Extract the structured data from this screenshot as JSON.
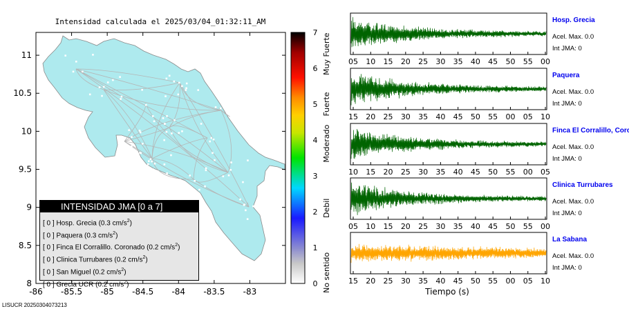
{
  "map": {
    "title": "Intensidad calculada el 2025/03/04_01:32:11_AM",
    "x_ticks": [
      "-86",
      "-85.5",
      "-85",
      "-84.5",
      "-84",
      "-83.5",
      "-83"
    ],
    "y_ticks": [
      "11",
      "10.5",
      "10",
      "9.5",
      "9",
      "8.5",
      "8"
    ],
    "xlim": [
      -86,
      -82.5
    ],
    "ylim": [
      8,
      11.3
    ],
    "land_color": "#aeeaee",
    "border_color": "#8a8a8a",
    "road_color": "#bdbdbd"
  },
  "legend": {
    "title": "INTENSIDAD JMA [0 a 7]",
    "unit_base": "cm/s",
    "unit_sup": "2",
    "items": [
      {
        "prefix": "[ 0 ]",
        "label": "Hosp. Grecia (0.3 cm/s"
      },
      {
        "prefix": "[ 0 ]",
        "label": "Paquera (0.3 cm/s"
      },
      {
        "prefix": "[ 0 ]",
        "label": "Finca El Corralillo. Coronado (0.2 cm/s"
      },
      {
        "prefix": "[ 0 ]",
        "label": "Clinica Turrubares (0.2 cm/s"
      },
      {
        "prefix": "[ 0 ]",
        "label": "San Miguel (0.2 cm/s"
      },
      {
        "prefix": "[ 0 ]",
        "label": "Grecia UCR (0.2 cm/s"
      }
    ]
  },
  "colorbar": {
    "ticks": [
      "0",
      "1",
      "2",
      "3",
      "4",
      "5",
      "6",
      "7"
    ],
    "categories": [
      "No sentido",
      "Debil",
      "Moderado",
      "Fuerte",
      "Muy Fuerte"
    ],
    "colors": [
      "#ffffff",
      "#9a9a9a",
      "#1a1aff",
      "#00d8ff",
      "#00e400",
      "#e6e600",
      "#ff8c00",
      "#ff0000",
      "#a00000",
      "#000000"
    ]
  },
  "footer": "LISUCR 20250304073213",
  "xlabel": "Tiempo (s)",
  "stations": [
    {
      "name": "Hosp. Grecia",
      "acel": "Acel. Max. 0.0",
      "int": "Int JMA: 0",
      "color": "#006400",
      "ticks": [
        "05",
        "10",
        "15",
        "20",
        "25",
        "30",
        "35",
        "40",
        "45",
        "50",
        "55",
        "00"
      ]
    },
    {
      "name": "Paquera",
      "acel": "Acel. Max. 0.0",
      "int": "Int JMA: 0",
      "color": "#006400",
      "ticks": [
        "15",
        "20",
        "25",
        "30",
        "35",
        "40",
        "45",
        "50",
        "55",
        "00",
        "05",
        "10"
      ]
    },
    {
      "name": "Finca El Corralillo, Coro",
      "acel": "Acel. Max. 0.0",
      "int": "Int JMA: 0",
      "color": "#006400",
      "ticks": [
        "10",
        "15",
        "20",
        "25",
        "30",
        "35",
        "40",
        "45",
        "50",
        "55",
        "00",
        "05"
      ]
    },
    {
      "name": "Clinica Turrubares",
      "acel": "Acel. Max. 0.0",
      "int": "Int JMA: 0",
      "color": "#006400",
      "ticks": [
        "05",
        "10",
        "15",
        "20",
        "25",
        "30",
        "35",
        "40",
        "45",
        "50",
        "55",
        "00"
      ]
    },
    {
      "name": "La Sabana",
      "acel": "Acel. Max. 0.0",
      "int": "Int JMA: 0",
      "color": "#ffa500",
      "ticks": [
        "15",
        "20",
        "25",
        "30",
        "35",
        "40",
        "45",
        "50",
        "55",
        "00",
        "05",
        "10"
      ]
    }
  ]
}
